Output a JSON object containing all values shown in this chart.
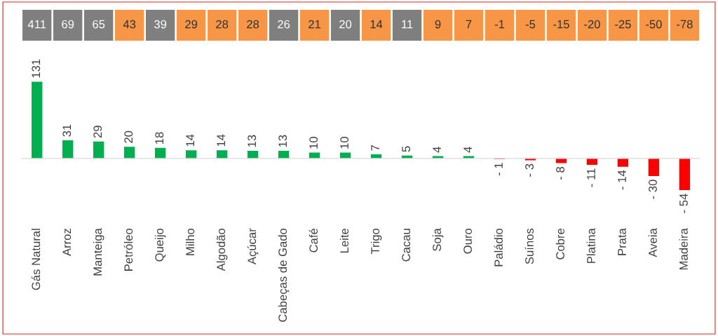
{
  "chart_data": [
    {
      "type": "other",
      "categories": [
        null,
        null,
        null,
        null,
        null,
        null,
        null,
        null,
        null,
        null,
        null,
        null,
        null,
        null,
        null,
        null,
        null,
        null,
        null,
        null,
        null,
        null
      ],
      "values": [
        411,
        69,
        65,
        43,
        39,
        29,
        28,
        28,
        26,
        21,
        20,
        14,
        11,
        9,
        7,
        -1,
        -5,
        -15,
        -20,
        -25,
        -50,
        -78
      ],
      "colors": [
        "#7f7f7f",
        "#7f7f7f",
        "#7f7f7f",
        "#f79646",
        "#7f7f7f",
        "#f79646",
        "#f79646",
        "#f79646",
        "#7f7f7f",
        "#f79646",
        "#7f7f7f",
        "#f79646",
        "#7f7f7f",
        "#f79646",
        "#f79646",
        "#f79646",
        "#f79646",
        "#f79646",
        "#f79646",
        "#f79646",
        "#f79646",
        "#f79646"
      ],
      "data_labels": true
    },
    {
      "type": "bar",
      "categories": [
        "Gás Natural",
        "Arroz",
        "Manteiga",
        "Petróleo",
        "Queijo",
        "Milho",
        "Algodão",
        "Açúcar",
        "Cabeças de Gado",
        "Café",
        "Leite",
        "Trigo",
        "Cacau",
        "Soja",
        "Ouro",
        "Paládio",
        "Suínos",
        "Cobre",
        "Platina",
        "Prata",
        "Aveia",
        "Madeira"
      ],
      "values": [
        131,
        31,
        29,
        20,
        18,
        14,
        14,
        13,
        13,
        10,
        10,
        7,
        5,
        4,
        4,
        -1,
        -3,
        -8,
        -11,
        -14,
        -30,
        -54
      ],
      "value_labels": [
        "131",
        "31",
        "29",
        "20",
        "18",
        "14",
        "14",
        "13",
        "13",
        "10",
        "10",
        "7",
        "5",
        "4",
        "4",
        "- 1",
        "- 3",
        "- 8",
        "- 11",
        "- 14",
        "- 30",
        "- 54"
      ],
      "colors": [
        "#00b050",
        "#00b050",
        "#00b050",
        "#00b050",
        "#00b050",
        "#00b050",
        "#00b050",
        "#00b050",
        "#00b050",
        "#00b050",
        "#00b050",
        "#00b050",
        "#00b050",
        "#00b050",
        "#00b050",
        "#ff0000",
        "#ff0000",
        "#ff0000",
        "#ff0000",
        "#ff0000",
        "#ff0000",
        "#ff0000"
      ]
    }
  ]
}
